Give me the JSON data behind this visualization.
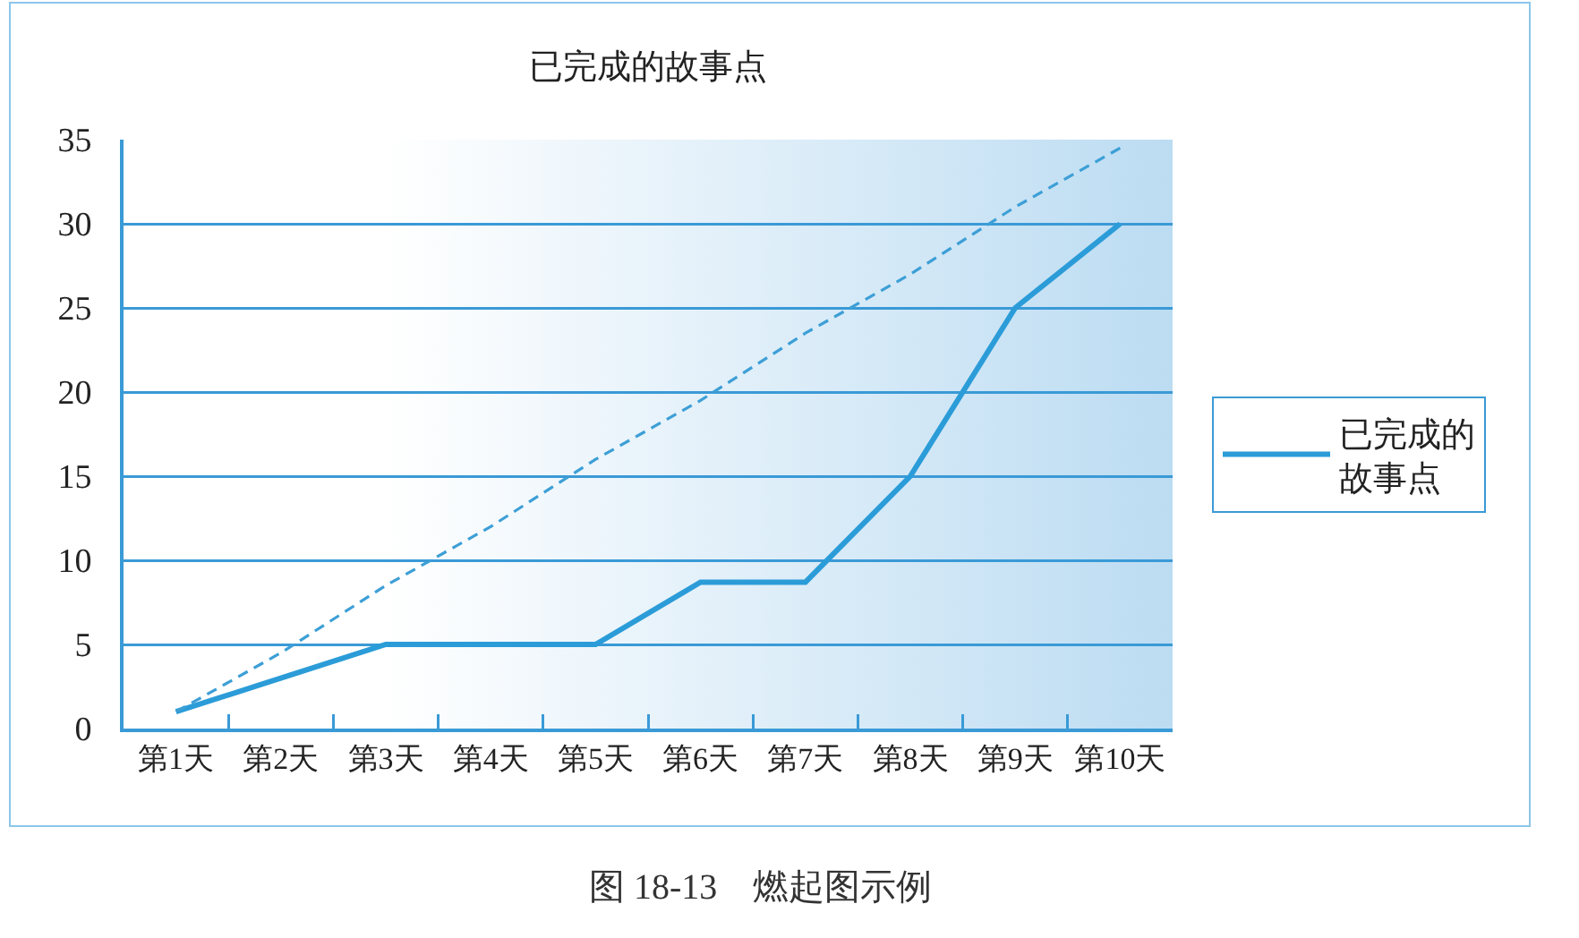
{
  "chart_data": {
    "type": "line",
    "title": "已完成的故事点",
    "categories": [
      "第1天",
      "第2天",
      "第3天",
      "第4天",
      "第5天",
      "第6天",
      "第7天",
      "第8天",
      "第9天",
      "第10天"
    ],
    "series": [
      {
        "name": "已完成的故事点",
        "color": "#2b9cd8",
        "values": [
          1,
          3,
          5,
          5,
          5,
          8.7,
          8.7,
          15,
          25,
          30
        ]
      },
      {
        "color": "#3d9fd6",
        "line_style": "dashed",
        "values": [
          1,
          4.5,
          8.5,
          12,
          16,
          19.5,
          23.5,
          27,
          31,
          34.5
        ]
      }
    ],
    "ylim": [
      0,
      35
    ],
    "yticks": [
      0,
      5,
      10,
      15,
      20,
      25,
      30,
      35
    ],
    "grid": "y",
    "legend": "right",
    "line_style": "solid",
    "annotations": [
      "图 18-13　燃起图示例"
    ]
  }
}
